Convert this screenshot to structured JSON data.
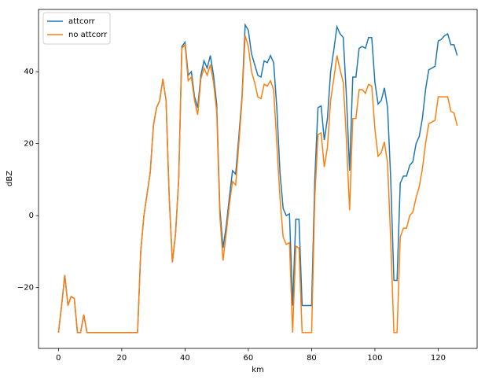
{
  "chart_data": {
    "type": "line",
    "x_label": "km",
    "y_label": "dBZ",
    "x": [
      0,
      1,
      2,
      3,
      4,
      5,
      6,
      7,
      8,
      9,
      10,
      11,
      12,
      13,
      14,
      15,
      16,
      17,
      18,
      19,
      20,
      21,
      22,
      23,
      24,
      25,
      26,
      27,
      28,
      29,
      30,
      31,
      32,
      33,
      34,
      35,
      36,
      37,
      38,
      39,
      40,
      41,
      42,
      43,
      44,
      45,
      46,
      47,
      48,
      49,
      50,
      51,
      52,
      53,
      54,
      55,
      56,
      57,
      58,
      59,
      60,
      61,
      62,
      63,
      64,
      65,
      66,
      67,
      68,
      69,
      70,
      71,
      72,
      73,
      74,
      75,
      76,
      77,
      78,
      79,
      80,
      81,
      82,
      83,
      84,
      85,
      86,
      87,
      88,
      89,
      90,
      91,
      92,
      93,
      94,
      95,
      96,
      97,
      98,
      99,
      100,
      101,
      102,
      103,
      104,
      105,
      106,
      107,
      108,
      109,
      110,
      111,
      112,
      113,
      114,
      115,
      116,
      117,
      118,
      119,
      120,
      121,
      122,
      123,
      124,
      125,
      126
    ],
    "series": [
      {
        "name": "attcorr",
        "color": "#1f77b4",
        "values": [
          -32.5,
          -25,
          -16.5,
          -25,
          -22.5,
          -23,
          -32.5,
          -32.5,
          -27.5,
          -32.5,
          -32.5,
          -32.5,
          -32.5,
          -32.5,
          -32.5,
          -32.5,
          -32.5,
          -32.5,
          -32.5,
          -32.5,
          -32.5,
          -32.5,
          -32.5,
          -32.5,
          -32.5,
          -32.5,
          -10,
          0,
          6,
          12,
          25,
          30,
          32,
          38,
          32,
          5,
          -13,
          -5,
          10,
          47,
          48.2,
          39,
          40,
          33,
          30,
          39,
          43,
          41,
          44.5,
          39,
          31,
          2,
          -9,
          -3,
          5,
          12.5,
          11.5,
          22,
          33,
          53,
          51.5,
          45,
          42,
          39,
          38.5,
          43,
          42.5,
          44.5,
          42.5,
          30,
          12,
          2,
          0,
          0.5,
          -25,
          -1,
          -1,
          -25,
          -25,
          -25,
          -25,
          10,
          30,
          30.5,
          21,
          27,
          40,
          46,
          52.5,
          50.5,
          49.5,
          33,
          12.5,
          38.5,
          38.5,
          46.5,
          47,
          46.5,
          49.5,
          49.5,
          37,
          31,
          32,
          35.5,
          30,
          10,
          -18,
          -18,
          9,
          11,
          11,
          14,
          15,
          20,
          22,
          27,
          35,
          40.5,
          41,
          41.5,
          48.5,
          49,
          50,
          50.5,
          47.5,
          47.5,
          44.5
        ]
      },
      {
        "name": "no attcorr",
        "color": "#ff7f0e",
        "values": [
          -32.5,
          -25,
          -16.5,
          -25,
          -22.5,
          -23,
          -32.5,
          -32.5,
          -27.5,
          -32.5,
          -32.5,
          -32.5,
          -32.5,
          -32.5,
          -32.5,
          -32.5,
          -32.5,
          -32.5,
          -32.5,
          -32.5,
          -32.5,
          -32.5,
          -32.5,
          -32.5,
          -32.5,
          -32.5,
          -10,
          0,
          6,
          12,
          25,
          30,
          32,
          38,
          32,
          5,
          -13,
          -5,
          10,
          46.5,
          47.5,
          37.5,
          38.5,
          32,
          28,
          38,
          41,
          39,
          42,
          37,
          29,
          0,
          -12.5,
          -5,
          3,
          9.5,
          8.5,
          20,
          32,
          50,
          47,
          40,
          37,
          33,
          32.5,
          36.5,
          36,
          37.5,
          35,
          20,
          5,
          -6,
          -8,
          -7.5,
          -32.5,
          -8.5,
          -9,
          -32.5,
          -32.5,
          -32.5,
          -32.5,
          5,
          22.5,
          23,
          13.5,
          19,
          32,
          38,
          44.5,
          40.5,
          37,
          21,
          1.5,
          27,
          27,
          35,
          35,
          34,
          36.5,
          36,
          24,
          16.5,
          17.5,
          20.5,
          14.5,
          -7,
          -32.5,
          -32.5,
          -6,
          -3.5,
          -3.5,
          0,
          1,
          5,
          8,
          13,
          20,
          25.5,
          26,
          26.5,
          33,
          33,
          33,
          33,
          29,
          28.5,
          25
        ]
      }
    ],
    "xlim": [
      -6.3,
      132.3
    ],
    "ylim": [
      -36.9,
      57.3
    ],
    "xticks": [
      0,
      20,
      40,
      60,
      80,
      100,
      120
    ],
    "yticks": [
      {
        "value": -20,
        "label": "−20"
      },
      0,
      20,
      40
    ],
    "legend": "upper left"
  }
}
